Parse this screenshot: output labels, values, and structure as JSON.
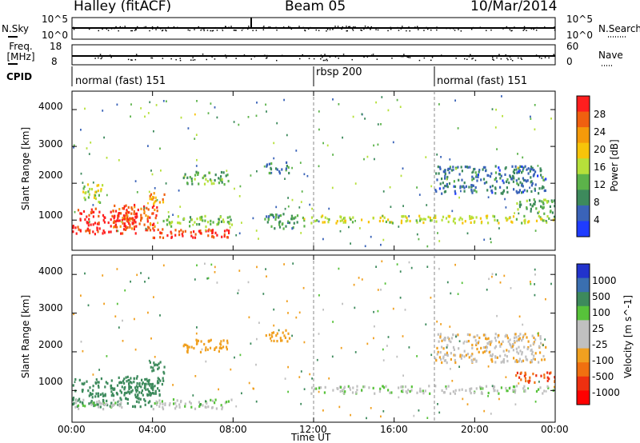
{
  "header": {
    "radar": "Halley (fitACF)",
    "beam": "Beam 05",
    "date": "10/Mar/2014"
  },
  "colors": {
    "power": [
      "#1f3cff",
      "#3a63b8",
      "#3d8a5c",
      "#5cb34a",
      "#b6e03a",
      "#f7c40a",
      "#f59a0a",
      "#f06010",
      "#ff1e1e"
    ],
    "velocity": [
      "#2233cc",
      "#3a6fb0",
      "#3d8a5c",
      "#57c23a",
      "#c0c0c0",
      "#c0c0c0",
      "#f0a020",
      "#f07010",
      "#ee3010",
      "#ff0000"
    ]
  },
  "chart_data": [
    {
      "type": "line",
      "panel": "noise",
      "left_label": "N.Sky",
      "right_label": "N.Search",
      "left_ticks": [
        "10^5",
        "10^0"
      ],
      "right_ticks": [
        "10^5",
        "10^0"
      ],
      "series": [
        {
          "name": "N.Sky",
          "x": [
            0,
            2,
            4,
            6,
            8,
            10,
            12,
            14,
            16,
            18,
            20,
            22,
            24
          ],
          "values": [
            1000,
            1000,
            1000,
            1000,
            1000,
            1000,
            1000,
            1000,
            1000,
            1000,
            1000,
            1000,
            1000
          ]
        }
      ]
    },
    {
      "type": "scatter",
      "panel": "frequency",
      "left_label": "Freq. [MHz]",
      "right_label": "Nave",
      "left_ticks": [
        "18",
        "8"
      ],
      "right_ticks": [
        "60",
        "0"
      ],
      "series": [
        {
          "name": "Freq.",
          "x": [
            0,
            4,
            8,
            12,
            16,
            20,
            24
          ],
          "values": [
            10,
            10,
            10,
            10,
            10,
            10,
            10
          ]
        }
      ]
    },
    {
      "type": "table",
      "panel": "cpid",
      "label": "CPID",
      "segments": [
        {
          "name": "normal (fast) 151",
          "start": 0,
          "end": 12
        },
        {
          "name": "rbsp 200",
          "start": 12,
          "end": 18
        },
        {
          "name": "normal (fast) 151",
          "start": 18,
          "end": 24
        }
      ]
    },
    {
      "type": "heatmap",
      "panel": "power",
      "ylabel": "Slant Range [km]",
      "xlim": [
        0,
        24
      ],
      "ylim": [
        180,
        4500
      ],
      "yticks": [
        1000,
        2000,
        3000,
        4000
      ],
      "colorbar": {
        "label": "Power [dB]",
        "ticks": [
          4,
          8,
          12,
          16,
          20,
          24,
          28
        ],
        "range": [
          0,
          32
        ]
      },
      "regions": [
        {
          "t0": 0.0,
          "t1": 3.2,
          "r0": 650,
          "r1": 1350,
          "level": 30
        },
        {
          "t0": 2.0,
          "t1": 4.2,
          "r0": 750,
          "r1": 1450,
          "level": 27
        },
        {
          "t0": 4.0,
          "t1": 8.0,
          "r0": 550,
          "r1": 800,
          "level": 29
        },
        {
          "t0": 3.8,
          "t1": 4.6,
          "r0": 1450,
          "r1": 1800,
          "level": 22
        },
        {
          "t0": 0.5,
          "t1": 1.5,
          "r0": 1500,
          "r1": 2000,
          "level": 16
        },
        {
          "t0": 4.5,
          "t1": 8.0,
          "r0": 850,
          "r1": 1150,
          "level": 14
        },
        {
          "t0": 5.5,
          "t1": 7.8,
          "r0": 2000,
          "r1": 2350,
          "level": 12
        },
        {
          "t0": 9.6,
          "t1": 10.8,
          "r0": 2300,
          "r1": 2600,
          "level": 9
        },
        {
          "t0": 9.5,
          "t1": 11.5,
          "r0": 800,
          "r1": 1200,
          "level": 10
        },
        {
          "t0": 11.8,
          "t1": 24.0,
          "r0": 950,
          "r1": 1150,
          "level": 17
        },
        {
          "t0": 18.0,
          "t1": 23.5,
          "r0": 1750,
          "r1": 2500,
          "level": 7
        },
        {
          "t0": 22.0,
          "t1": 24.0,
          "r0": 1200,
          "r1": 1600,
          "level": 11
        }
      ]
    },
    {
      "type": "heatmap",
      "panel": "velocity",
      "ylabel": "Slant Range [km]",
      "xlabel": "Time UT",
      "xlim": [
        0,
        24
      ],
      "ylim": [
        180,
        4500
      ],
      "yticks": [
        1000,
        2000,
        3000,
        4000
      ],
      "xticks": [
        "00:00",
        "04:00",
        "08:00",
        "12:00",
        "16:00",
        "20:00",
        "00:00"
      ],
      "colorbar": {
        "label": "Velocity [m s^-1]",
        "ticks": [
          1000,
          500,
          100,
          25,
          -25,
          -100,
          -500,
          -1000
        ]
      },
      "regions": [
        {
          "t0": 0.0,
          "t1": 4.0,
          "r0": 600,
          "r1": 1350,
          "level": 100
        },
        {
          "t0": 2.0,
          "t1": 4.5,
          "r0": 900,
          "r1": 1400,
          "level": 200
        },
        {
          "t0": 3.8,
          "t1": 4.6,
          "r0": 1450,
          "r1": 1800,
          "level": 150
        },
        {
          "t0": 4.0,
          "t1": 8.0,
          "r0": 550,
          "r1": 800,
          "level": 0
        },
        {
          "t0": 0.0,
          "t1": 2.5,
          "r0": 550,
          "r1": 800,
          "level": 0
        },
        {
          "t0": 5.5,
          "t1": 7.8,
          "r0": 2000,
          "r1": 2350,
          "level": -150
        },
        {
          "t0": 9.6,
          "t1": 10.8,
          "r0": 2300,
          "r1": 2600,
          "level": -200
        },
        {
          "t0": 11.8,
          "t1": 24.0,
          "r0": 950,
          "r1": 1150,
          "level": 0
        },
        {
          "t0": 18.0,
          "t1": 23.5,
          "r0": 1750,
          "r1": 2500,
          "level": -50
        },
        {
          "t0": 22.0,
          "t1": 24.0,
          "r0": 1200,
          "r1": 1500,
          "level": -600
        }
      ]
    }
  ]
}
